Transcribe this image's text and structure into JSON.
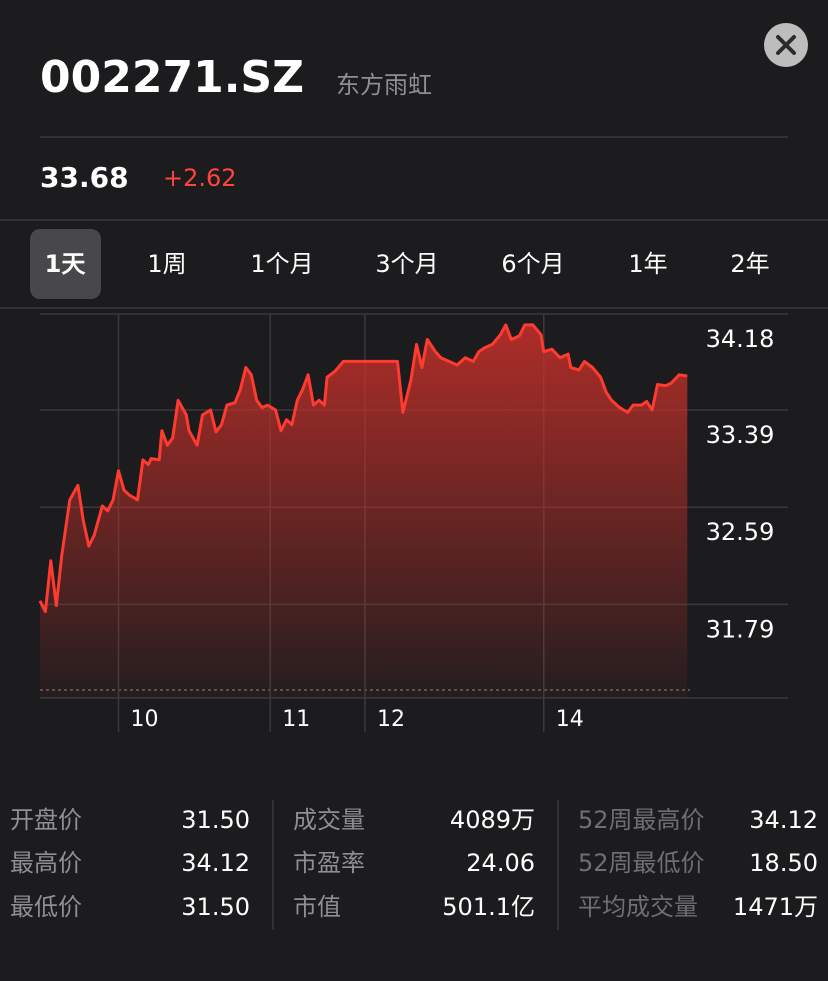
{
  "header": {
    "symbol": "002271.SZ",
    "name": "东方雨虹"
  },
  "quote": {
    "price": "33.68",
    "change": "+2.62"
  },
  "tabs": [
    "1天",
    "1周",
    "1个月",
    "3个月",
    "6个月",
    "1年",
    "2年"
  ],
  "chart_data": {
    "type": "line",
    "color": "#ff3b30",
    "x": [
      0,
      2,
      4,
      6,
      8,
      11,
      14,
      16,
      18,
      20,
      23,
      25,
      27,
      29,
      31,
      33,
      36,
      38,
      40,
      41,
      44,
      45,
      47,
      49,
      51,
      54,
      55,
      58,
      60,
      63,
      65,
      67,
      69,
      72,
      74,
      76,
      78,
      80,
      82,
      84,
      87,
      89,
      91,
      93,
      95,
      97,
      99,
      101,
      103,
      105,
      106,
      109,
      112,
      118,
      126,
      132,
      134,
      137,
      139,
      141,
      143,
      146,
      148,
      151,
      154,
      157,
      160,
      162,
      164,
      167,
      170,
      172,
      174,
      177,
      179,
      182,
      185,
      186,
      189,
      192,
      195,
      196,
      199,
      201,
      204,
      207,
      209,
      211,
      214,
      217,
      219,
      222,
      224,
      226,
      228,
      231,
      233,
      236,
      239
    ],
    "values": [
      31.82,
      31.73,
      32.15,
      31.78,
      32.19,
      32.65,
      32.77,
      32.48,
      32.27,
      32.36,
      32.6,
      32.56,
      32.65,
      32.89,
      32.73,
      32.69,
      32.65,
      32.98,
      32.94,
      32.99,
      32.98,
      33.22,
      33.1,
      33.16,
      33.47,
      33.35,
      33.22,
      33.1,
      33.35,
      33.39,
      33.21,
      33.27,
      33.43,
      33.45,
      33.56,
      33.74,
      33.68,
      33.47,
      33.41,
      33.43,
      33.39,
      33.22,
      33.31,
      33.27,
      33.47,
      33.56,
      33.68,
      33.43,
      33.47,
      33.43,
      33.66,
      33.71,
      33.79,
      33.79,
      33.79,
      33.79,
      33.37,
      33.64,
      33.93,
      33.74,
      33.97,
      33.87,
      33.82,
      33.79,
      33.76,
      33.82,
      33.79,
      33.87,
      33.9,
      33.93,
      34.01,
      34.09,
      33.97,
      34.0,
      34.09,
      34.09,
      34.01,
      33.87,
      33.89,
      33.82,
      33.85,
      33.74,
      33.72,
      33.79,
      33.74,
      33.66,
      33.54,
      33.47,
      33.41,
      33.37,
      33.43,
      33.43,
      33.46,
      33.39,
      33.6,
      33.59,
      33.61,
      33.68,
      33.67
    ],
    "xlim": [
      0,
      240
    ],
    "ylim": [
      31.02,
      34.18
    ],
    "yticks": [
      34.18,
      33.39,
      32.59,
      31.79
    ],
    "xticks": [
      {
        "value": 29,
        "label": "10"
      },
      {
        "value": 85,
        "label": "11"
      },
      {
        "value": 120,
        "label": "12"
      },
      {
        "value": 186,
        "label": "14"
      }
    ],
    "grid": true
  },
  "stats": [
    [
      {
        "label": "开盘价",
        "value": "31.50"
      },
      {
        "label": "最高价",
        "value": "34.12"
      },
      {
        "label": "最低价",
        "value": "31.50"
      }
    ],
    [
      {
        "label": "成交量",
        "value": "4089万"
      },
      {
        "label": "市盈率",
        "value": "24.06"
      },
      {
        "label": "市值",
        "value": "501.1亿"
      }
    ],
    [
      {
        "label": "52周最高价",
        "value": "34.12"
      },
      {
        "label": "52周最低价",
        "value": "18.50"
      },
      {
        "label": "平均成交量",
        "value": "1471万"
      }
    ]
  ]
}
